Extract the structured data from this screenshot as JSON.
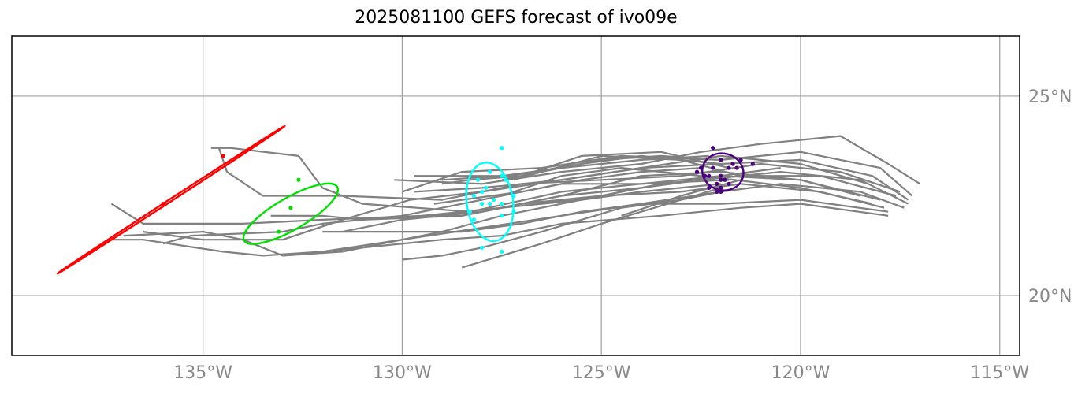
{
  "title": "2025081100 GEFS forecast of ivo09e",
  "map": {
    "lon_range": [
      -139.8,
      -114.5
    ],
    "lat_range": [
      18.5,
      26.5
    ],
    "gridline_color": "#a0a0a0",
    "frame_color": "#000000",
    "lon_ticks": [
      {
        "value": -135,
        "label": "135°W"
      },
      {
        "value": -130,
        "label": "130°W"
      },
      {
        "value": -125,
        "label": "125°W"
      },
      {
        "value": -120,
        "label": "120°W"
      },
      {
        "value": -115,
        "label": "115°W"
      }
    ],
    "lat_ticks": [
      {
        "value": 25,
        "label": "25°N"
      },
      {
        "value": 20,
        "label": "20°N"
      }
    ]
  },
  "chart_data": {
    "type": "map",
    "track_color": "#808080",
    "tracks": [
      [
        [
          -117.0,
          22.8
        ],
        [
          -117.8,
          23.3
        ],
        [
          -119.0,
          24.0
        ],
        [
          -121.0,
          23.8
        ],
        [
          -122.5,
          23.6
        ],
        [
          -124.0,
          23.3
        ],
        [
          -126.0,
          23.1
        ],
        [
          -128.0,
          22.8
        ],
        [
          -130.2,
          22.9
        ]
      ],
      [
        [
          -117.2,
          22.5
        ],
        [
          -118.0,
          23.2
        ],
        [
          -120.0,
          23.6
        ],
        [
          -122.0,
          23.4
        ],
        [
          -124.5,
          23.5
        ],
        [
          -126.5,
          23.2
        ],
        [
          -128.5,
          23.1
        ],
        [
          -130.0,
          22.6
        ]
      ],
      [
        [
          -117.3,
          22.4
        ],
        [
          -118.2,
          23.0
        ],
        [
          -120.0,
          23.4
        ],
        [
          -122.0,
          23.3
        ],
        [
          -124.0,
          23.2
        ],
        [
          -126.0,
          22.9
        ],
        [
          -128.0,
          22.7
        ],
        [
          -129.7,
          22.6
        ]
      ],
      [
        [
          -117.3,
          22.3
        ],
        [
          -118.5,
          22.9
        ],
        [
          -120.5,
          23.1
        ],
        [
          -122.5,
          22.9
        ],
        [
          -124.0,
          22.7
        ],
        [
          -126.0,
          22.5
        ],
        [
          -128.0,
          22.1
        ],
        [
          -130.0,
          21.9
        ]
      ],
      [
        [
          -117.4,
          22.2
        ],
        [
          -118.5,
          22.6
        ],
        [
          -120.5,
          22.8
        ],
        [
          -122.0,
          22.6
        ],
        [
          -124.0,
          22.3
        ],
        [
          -125.5,
          22.1
        ],
        [
          -127.0,
          21.8
        ],
        [
          -128.5,
          21.6
        ],
        [
          -130.5,
          21.6
        ],
        [
          -132.0,
          21.6
        ]
      ],
      [
        [
          -117.5,
          22.6
        ],
        [
          -119.0,
          23.1
        ],
        [
          -121.0,
          23.3
        ],
        [
          -123.0,
          23.0
        ],
        [
          -125.0,
          22.9
        ],
        [
          -127.0,
          22.8
        ],
        [
          -129.0,
          22.4
        ],
        [
          -131.5,
          22.5
        ],
        [
          -133.5,
          22.5
        ],
        [
          -134.4,
          23.1
        ],
        [
          -134.6,
          23.7
        ]
      ],
      [
        [
          -117.6,
          22.5
        ],
        [
          -119.5,
          23.0
        ],
        [
          -121.5,
          23.0
        ],
        [
          -123.5,
          22.8
        ],
        [
          -125.5,
          22.4
        ],
        [
          -127.5,
          22.2
        ],
        [
          -129.5,
          22.0
        ],
        [
          -132.0,
          21.9
        ],
        [
          -134.0,
          21.8
        ],
        [
          -136.5,
          21.8
        ],
        [
          -137.3,
          22.3
        ]
      ],
      [
        [
          -117.8,
          22.1
        ],
        [
          -120.0,
          22.4
        ],
        [
          -122.0,
          22.3
        ],
        [
          -124.0,
          22.3
        ],
        [
          -126.0,
          22.0
        ],
        [
          -128.0,
          21.7
        ],
        [
          -130.0,
          21.4
        ],
        [
          -132.0,
          21.1
        ],
        [
          -133.5,
          21.0
        ],
        [
          -134.5,
          21.1
        ],
        [
          -136.5,
          21.4
        ],
        [
          -137.3,
          21.4
        ]
      ],
      [
        [
          -117.8,
          22.0
        ],
        [
          -120.0,
          22.3
        ],
        [
          -121.5,
          22.2
        ],
        [
          -123.5,
          22.0
        ],
        [
          -126.0,
          21.8
        ],
        [
          -127.5,
          21.5
        ],
        [
          -129.0,
          21.4
        ],
        [
          -131.0,
          21.2
        ],
        [
          -133.0,
          21.0
        ],
        [
          -134.0,
          21.4
        ],
        [
          -135.0,
          21.6
        ],
        [
          -137.0,
          21.5
        ]
      ],
      [
        [
          -117.9,
          22.2
        ],
        [
          -119.5,
          22.6
        ],
        [
          -121.5,
          22.8
        ],
        [
          -123.0,
          22.6
        ],
        [
          -125.0,
          22.5
        ],
        [
          -127.0,
          22.3
        ],
        [
          -128.5,
          22.0
        ],
        [
          -131.0,
          21.9
        ],
        [
          -132.0,
          22.0
        ],
        [
          -133.3,
          22.0
        ]
      ],
      [
        [
          -118.0,
          22.4
        ],
        [
          -120.0,
          22.9
        ],
        [
          -122.0,
          23.0
        ],
        [
          -124.0,
          22.8
        ],
        [
          -126.0,
          22.6
        ],
        [
          -128.3,
          22.1
        ],
        [
          -131.0,
          22.3
        ],
        [
          -132.0,
          22.7
        ],
        [
          -132.6,
          23.5
        ],
        [
          -134.3,
          23.7
        ],
        [
          -134.8,
          23.7
        ]
      ],
      [
        [
          -118.2,
          22.3
        ],
        [
          -120.0,
          22.7
        ],
        [
          -122.5,
          23.0
        ],
        [
          -124.5,
          23.2
        ],
        [
          -126.0,
          23.0
        ],
        [
          -127.5,
          22.5
        ],
        [
          -129.0,
          22.2
        ],
        [
          -130.0,
          22.0
        ],
        [
          -132.0,
          21.8
        ],
        [
          -133.0,
          21.6
        ],
        [
          -135.3,
          21.5
        ],
        [
          -136.0,
          21.3
        ]
      ],
      [
        [
          -118.3,
          22.8
        ],
        [
          -120.0,
          23.3
        ],
        [
          -122.0,
          23.5
        ],
        [
          -124.0,
          23.2
        ],
        [
          -126.0,
          22.9
        ],
        [
          -128.0,
          22.6
        ],
        [
          -129.8,
          22.4
        ],
        [
          -131.5,
          21.9
        ],
        [
          -133.0,
          21.4
        ],
        [
          -135.0,
          21.4
        ],
        [
          -136.5,
          21.6
        ]
      ],
      [
        [
          -118.5,
          22.5
        ],
        [
          -120.0,
          22.9
        ],
        [
          -122.0,
          23.1
        ],
        [
          -124.0,
          23.0
        ],
        [
          -126.0,
          22.5
        ],
        [
          -128.0,
          22.1
        ],
        [
          -129.5,
          22.0
        ],
        [
          -130.5,
          21.8
        ],
        [
          -131.5,
          21.6
        ]
      ],
      [
        [
          -120.5,
          23.2
        ],
        [
          -122.0,
          23.0
        ],
        [
          -124.0,
          22.7
        ],
        [
          -126.0,
          22.3
        ],
        [
          -127.5,
          22.0
        ],
        [
          -129.0,
          21.6
        ],
        [
          -130.5,
          21.3
        ],
        [
          -131.5,
          21.1
        ],
        [
          -133.0,
          21.0
        ]
      ],
      [
        [
          -122.0,
          22.6
        ],
        [
          -123.0,
          22.4
        ],
        [
          -124.5,
          22.2
        ],
        [
          -126.5,
          21.6
        ],
        [
          -128.0,
          21.2
        ],
        [
          -129.0,
          21.0
        ],
        [
          -130.0,
          20.9
        ]
      ],
      [
        [
          -122.0,
          22.7
        ],
        [
          -123.0,
          22.4
        ],
        [
          -124.0,
          22.1
        ],
        [
          -125.0,
          21.8
        ],
        [
          -126.5,
          21.3
        ],
        [
          -127.5,
          21.0
        ],
        [
          -128.5,
          20.7
        ]
      ],
      [
        [
          -121.5,
          22.9
        ],
        [
          -123.0,
          22.5
        ],
        [
          -124.5,
          22.0
        ]
      ],
      [
        [
          -121.5,
          23.0
        ],
        [
          -123.0,
          23.4
        ],
        [
          -125.0,
          23.5
        ],
        [
          -126.5,
          23.1
        ],
        [
          -127.5,
          22.9
        ]
      ],
      [
        [
          -121.8,
          23.2
        ],
        [
          -123.5,
          23.6
        ],
        [
          -125.5,
          23.5
        ],
        [
          -127.0,
          23.0
        ],
        [
          -128.3,
          22.9
        ],
        [
          -129.0,
          22.8
        ]
      ],
      [
        [
          -122.0,
          23.3
        ],
        [
          -124.0,
          23.5
        ],
        [
          -125.5,
          23.3
        ],
        [
          -127.3,
          23.0
        ],
        [
          -128.5,
          23.0
        ],
        [
          -129.7,
          23.0
        ]
      ],
      [
        [
          -122.3,
          23.5
        ],
        [
          -124.0,
          23.4
        ],
        [
          -126.0,
          23.2
        ],
        [
          -127.5,
          23.0
        ],
        [
          -129.0,
          22.9
        ]
      ],
      [
        [
          -122.1,
          23.4
        ],
        [
          -123.5,
          23.5
        ],
        [
          -125.0,
          23.4
        ],
        [
          -126.5,
          23.1
        ],
        [
          -127.2,
          22.9
        ]
      ],
      [
        [
          -122.5,
          23.2
        ],
        [
          -124.0,
          23.1
        ],
        [
          -125.5,
          22.9
        ],
        [
          -127.0,
          22.6
        ],
        [
          -128.5,
          22.4
        ],
        [
          -129.2,
          22.3
        ]
      ],
      [
        [
          -122.0,
          22.8
        ],
        [
          -124.0,
          22.6
        ],
        [
          -125.5,
          22.4
        ],
        [
          -127.0,
          22.3
        ],
        [
          -128.5,
          22.0
        ],
        [
          -129.4,
          22.0
        ]
      ],
      [
        [
          -121.8,
          22.9
        ],
        [
          -124.0,
          22.8
        ],
        [
          -126.0,
          22.8
        ],
        [
          -127.5,
          22.5
        ]
      ]
    ],
    "time_groups": [
      {
        "color": "#4b0082",
        "points": [
          [
            -122.2,
            23.7
          ],
          [
            -121.2,
            23.3
          ],
          [
            -121.5,
            23.4
          ],
          [
            -121.7,
            23.3
          ],
          [
            -122.0,
            23.4
          ],
          [
            -122.5,
            23.2
          ],
          [
            -122.2,
            23.2
          ],
          [
            -122.0,
            23.0
          ],
          [
            -121.8,
            23.2
          ],
          [
            -121.6,
            23.2
          ],
          [
            -122.3,
            23.0
          ],
          [
            -122.4,
            23.0
          ],
          [
            -122.6,
            23.1
          ],
          [
            -122.0,
            22.9
          ],
          [
            -122.1,
            22.8
          ],
          [
            -122.0,
            22.7
          ],
          [
            -121.8,
            22.8
          ],
          [
            -121.9,
            22.9
          ],
          [
            -122.1,
            22.6
          ],
          [
            -122.0,
            22.6
          ],
          [
            -122.3,
            22.7
          ]
        ],
        "ellipse": {
          "center": [
            -121.95,
            23.1
          ],
          "semi_axes": [
            0.52,
            0.46
          ],
          "rotation": 15
        }
      },
      {
        "color": "#00ffff",
        "points": [
          [
            -127.5,
            23.7
          ],
          [
            -127.8,
            23.1
          ],
          [
            -128.1,
            22.9
          ],
          [
            -127.5,
            23.0
          ],
          [
            -127.4,
            22.9
          ],
          [
            -127.9,
            22.7
          ],
          [
            -128.0,
            22.6
          ],
          [
            -127.2,
            22.5
          ],
          [
            -127.7,
            22.4
          ],
          [
            -128.2,
            22.5
          ],
          [
            -127.5,
            22.3
          ],
          [
            -128.0,
            22.3
          ],
          [
            -127.8,
            22.3
          ],
          [
            -127.2,
            22.1
          ],
          [
            -127.5,
            22.0
          ],
          [
            -128.3,
            22.1
          ],
          [
            -128.2,
            21.9
          ],
          [
            -128.0,
            21.2
          ],
          [
            -127.5,
            21.1
          ]
        ],
        "ellipse": {
          "center": [
            -127.8,
            22.35
          ],
          "semi_axes": [
            0.58,
            0.99
          ],
          "rotation": -8
        }
      },
      {
        "color": "#00e000",
        "points": [
          [
            -132.6,
            22.9
          ],
          [
            -132.8,
            22.2
          ],
          [
            -133.1,
            21.6
          ]
        ],
        "ellipse": {
          "center": [
            -132.8,
            22.05
          ],
          "semi_axes": [
            1.35,
            0.4
          ],
          "rotation": -30
        }
      },
      {
        "color": "#ff0000",
        "points": [
          [
            -136.0,
            22.3
          ],
          [
            -134.5,
            23.5
          ]
        ],
        "ellipse": {
          "center": [
            -135.8,
            22.4
          ],
          "semi_axes": [
            3.4,
            0.03
          ],
          "rotation": -33
        }
      }
    ]
  }
}
